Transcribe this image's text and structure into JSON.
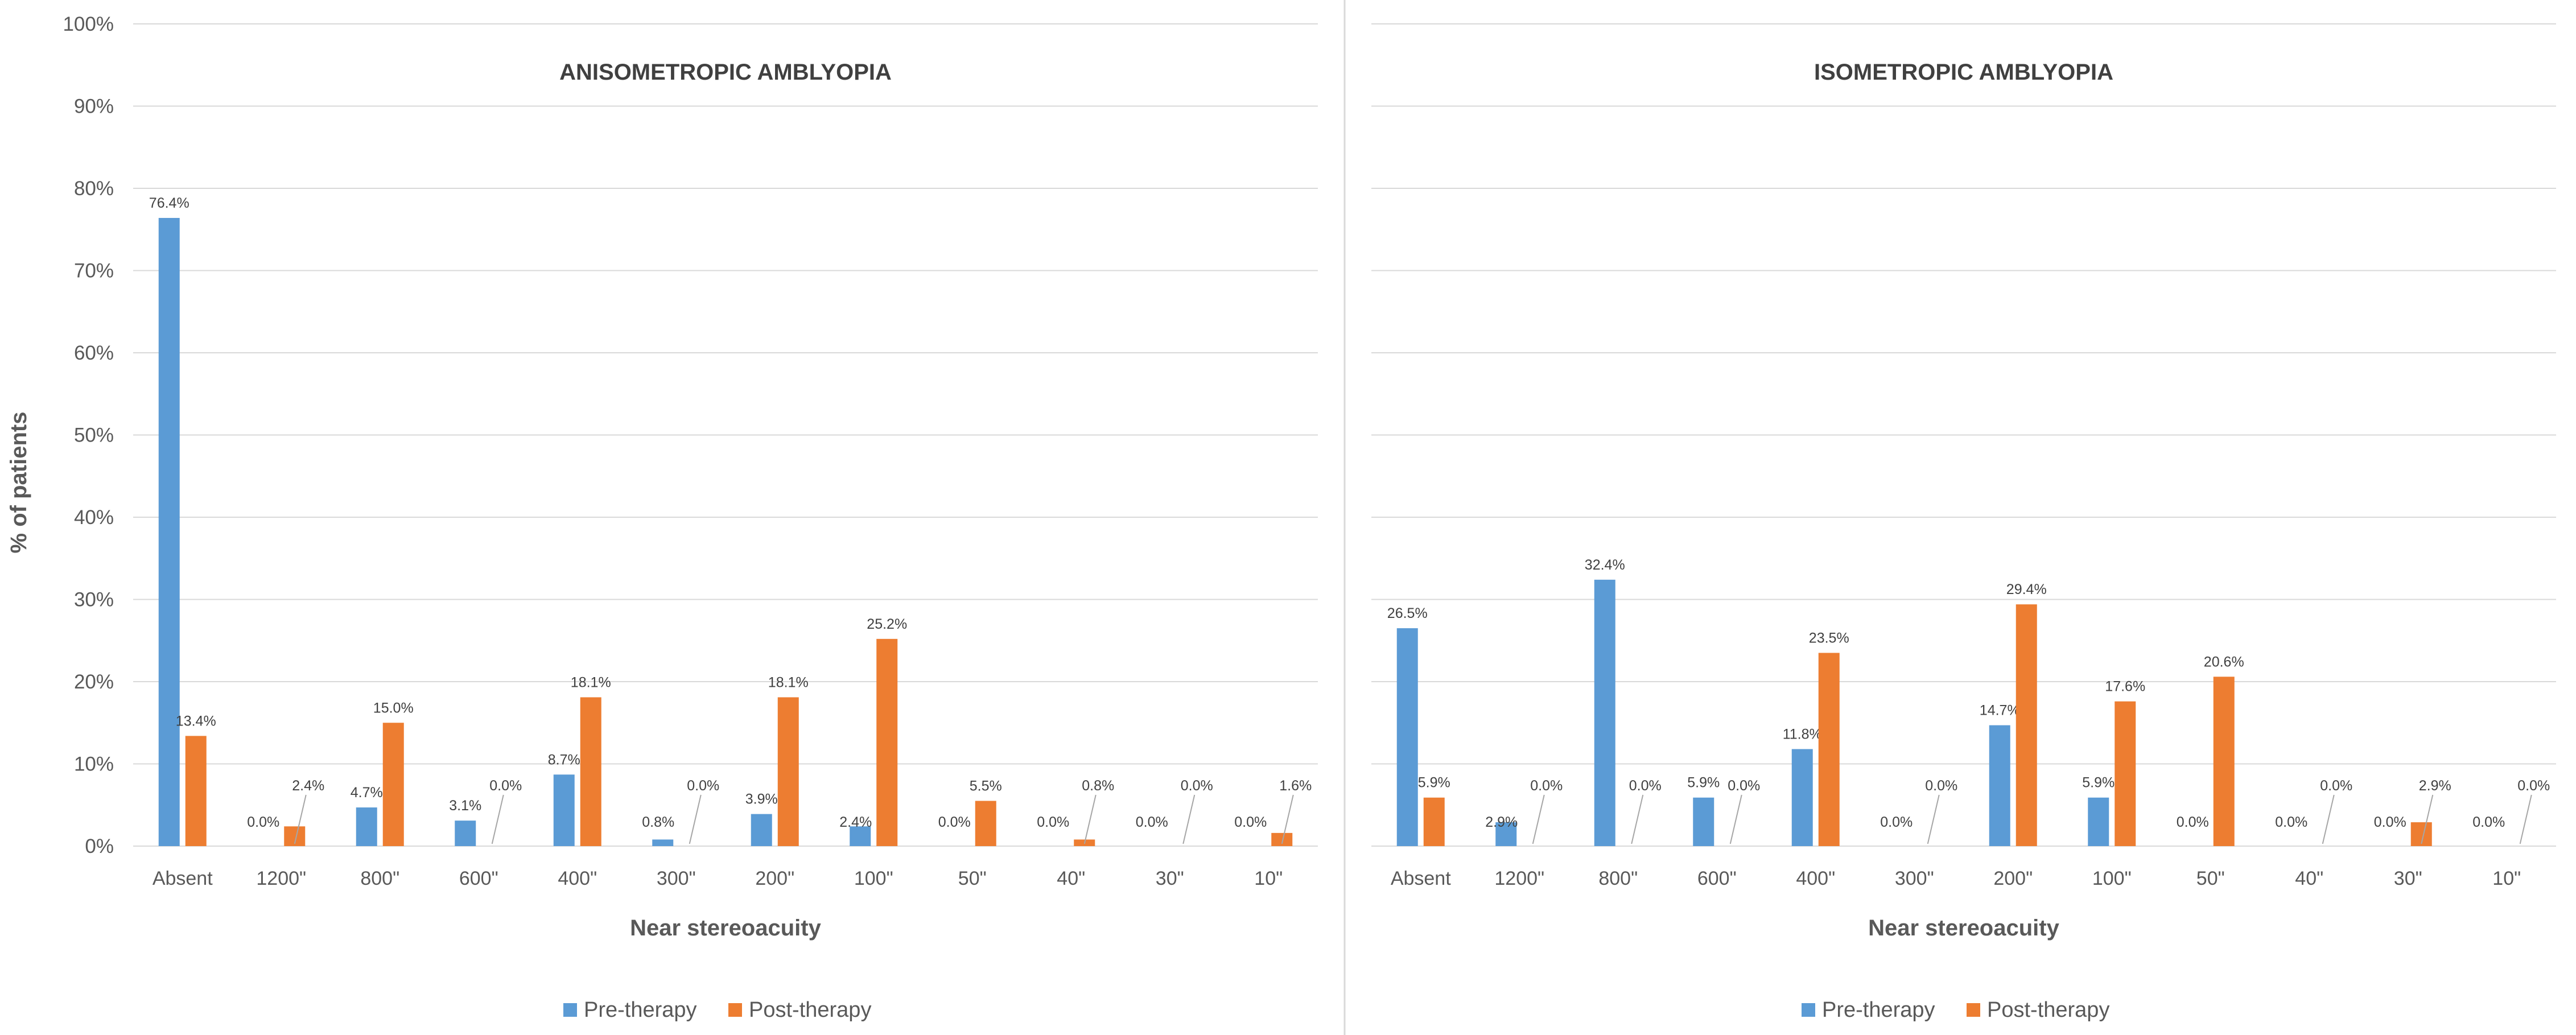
{
  "figure": {
    "ylabel": "% of patients"
  },
  "chart_data": [
    {
      "type": "bar",
      "title": "ANISOMETROPIC AMBLYOPIA",
      "xlabel": "Near stereoacuity",
      "ylabel": "% of patients",
      "ylim": [
        0,
        100
      ],
      "yticks": [
        "0%",
        "10%",
        "20%",
        "30%",
        "40%",
        "50%",
        "60%",
        "70%",
        "80%",
        "90%",
        "100%"
      ],
      "grid": true,
      "legend": "bottom-center",
      "categories": [
        "Absent",
        "1200\"",
        "800\"",
        "600\"",
        "400\"",
        "300\"",
        "200\"",
        "100\"",
        "50\"",
        "40\"",
        "30\"",
        "10\""
      ],
      "series": [
        {
          "name": "Pre-therapy",
          "color": "#5B9BD5",
          "values": [
            76.4,
            0.0,
            4.7,
            3.1,
            8.7,
            0.8,
            3.9,
            2.4,
            0.0,
            0.0,
            0.0,
            0.0
          ],
          "labels": [
            "76.4%",
            "0.0%",
            "4.7%",
            "3.1%",
            "8.7%",
            "0.8%",
            "3.9%",
            "2.4%",
            "0.0%",
            "0.0%",
            "0.0%",
            "0.0%"
          ]
        },
        {
          "name": "Post-therapy",
          "color": "#ED7D31",
          "values": [
            13.4,
            2.4,
            15.0,
            0.0,
            18.1,
            0.0,
            18.1,
            25.2,
            5.5,
            0.8,
            0.0,
            1.6
          ],
          "labels": [
            "13.4%",
            "2.4%",
            "15.0%",
            "0.0%",
            "18.1%",
            "0.0%",
            "18.1%",
            "25.2%",
            "5.5%",
            "0.8%",
            "0.0%",
            "1.6%"
          ]
        }
      ]
    },
    {
      "type": "bar",
      "title": "ISOMETROPIC AMBLYOPIA",
      "xlabel": "Near stereoacuity",
      "ylabel": "% of patients",
      "ylim": [
        0,
        100
      ],
      "grid": true,
      "legend": "bottom-center",
      "categories": [
        "Absent",
        "1200\"",
        "800\"",
        "600\"",
        "400\"",
        "300\"",
        "200\"",
        "100\"",
        "50\"",
        "40\"",
        "30\"",
        "10\""
      ],
      "series": [
        {
          "name": "Pre-therapy",
          "color": "#5B9BD5",
          "values": [
            26.5,
            2.9,
            32.4,
            5.9,
            11.8,
            0.0,
            14.7,
            5.9,
            0.0,
            0.0,
            0.0,
            0.0
          ],
          "labels": [
            "26.5%",
            "2.9%",
            "32.4%",
            "5.9%",
            "11.8%",
            "0.0%",
            "14.7%",
            "5.9%",
            "0.0%",
            "0.0%",
            "0.0%",
            "0.0%"
          ]
        },
        {
          "name": "Post-therapy",
          "color": "#ED7D31",
          "values": [
            5.9,
            0.0,
            0.0,
            0.0,
            23.5,
            0.0,
            29.4,
            17.6,
            20.6,
            0.0,
            2.9,
            0.0
          ],
          "labels": [
            "5.9%",
            "0.0%",
            "0.0%",
            "0.0%",
            "23.5%",
            "0.0%",
            "29.4%",
            "17.6%",
            "20.6%",
            "0.0%",
            "2.9%",
            "0.0%"
          ]
        }
      ]
    }
  ]
}
